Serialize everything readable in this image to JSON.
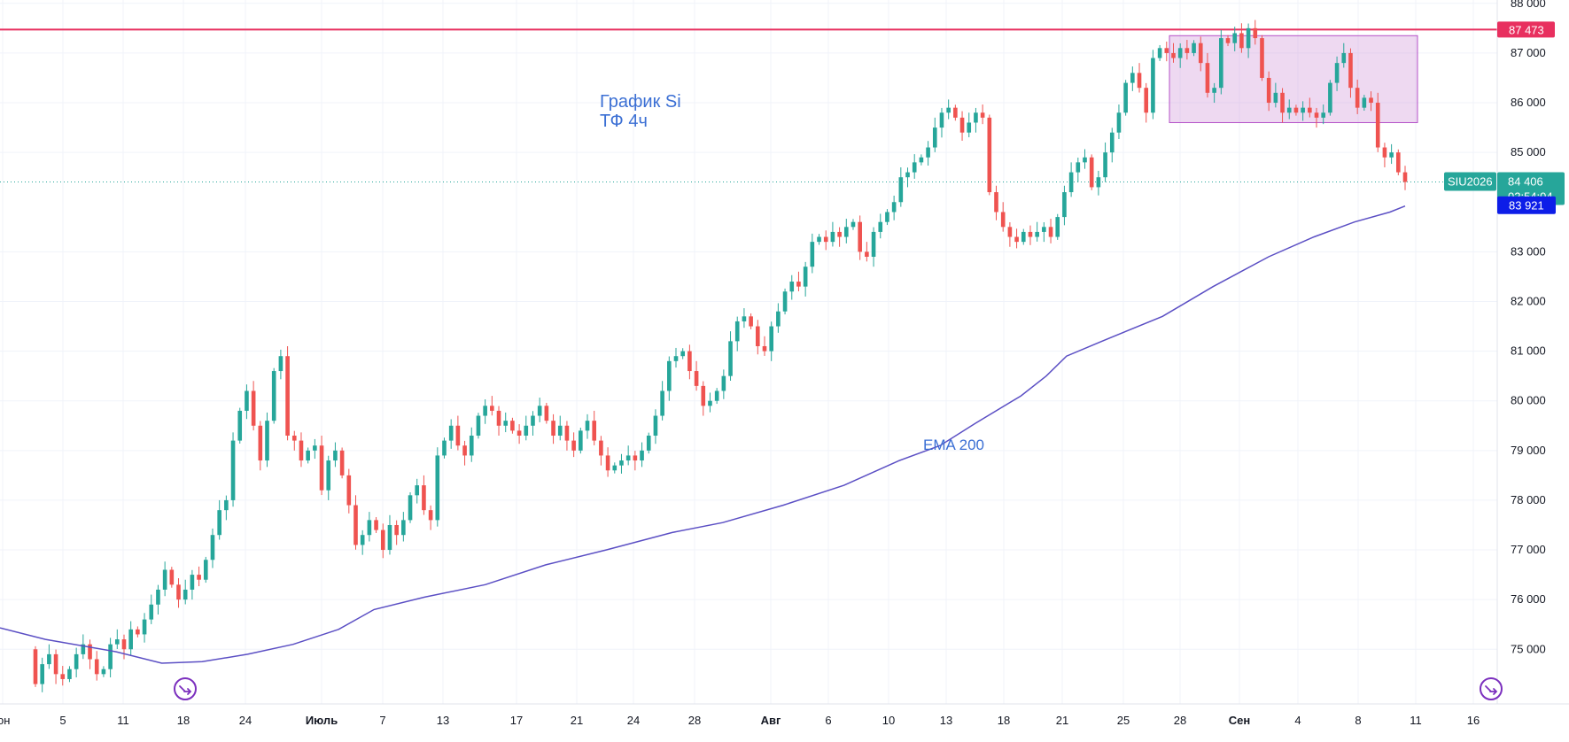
{
  "chart_data": {
    "type": "candlestick",
    "symbol": "SIU2026",
    "timeframe": "4h",
    "y_ticks": [
      75000,
      76000,
      77000,
      78000,
      79000,
      80000,
      81000,
      82000,
      83000,
      85000,
      86000,
      87000,
      88000
    ],
    "y_tick_labels": [
      "75 000",
      "76 000",
      "77 000",
      "78 000",
      "79 000",
      "80 000",
      "81 000",
      "82 000",
      "83 000",
      "85 000",
      "86 000",
      "87 000",
      "88 000"
    ],
    "ylim": [
      73900,
      88050
    ],
    "x_ticks": [
      {
        "label": "юн",
        "bold": false
      },
      {
        "label": "5",
        "bold": false
      },
      {
        "label": "11",
        "bold": false
      },
      {
        "label": "18",
        "bold": false
      },
      {
        "label": "24",
        "bold": false
      },
      {
        "label": "Июль",
        "bold": true
      },
      {
        "label": "7",
        "bold": false
      },
      {
        "label": "13",
        "bold": false
      },
      {
        "label": "17",
        "bold": false
      },
      {
        "label": "21",
        "bold": false
      },
      {
        "label": "24",
        "bold": false
      },
      {
        "label": "28",
        "bold": false
      },
      {
        "label": "Авг",
        "bold": true
      },
      {
        "label": "6",
        "bold": false
      },
      {
        "label": "10",
        "bold": false
      },
      {
        "label": "13",
        "bold": false
      },
      {
        "label": "18",
        "bold": false
      },
      {
        "label": "21",
        "bold": false
      },
      {
        "label": "25",
        "bold": false
      },
      {
        "label": "28",
        "bold": false
      },
      {
        "label": "Сен",
        "bold": true
      },
      {
        "label": "4",
        "bold": false
      },
      {
        "label": "8",
        "bold": false
      },
      {
        "label": "11",
        "bold": false
      },
      {
        "label": "16",
        "bold": false
      }
    ],
    "candles_close": [
      74300,
      74700,
      74900,
      74500,
      74400,
      74600,
      74900,
      75100,
      74800,
      74500,
      74600,
      75100,
      75200,
      75000,
      75400,
      75300,
      75600,
      75900,
      76200,
      76600,
      76300,
      76000,
      76200,
      76500,
      76400,
      76800,
      77300,
      77800,
      78000,
      79200,
      79800,
      80200,
      79500,
      78800,
      79600,
      80600,
      80900,
      79300,
      79200,
      78800,
      79000,
      79100,
      78200,
      78800,
      79000,
      78500,
      77900,
      77100,
      77300,
      77600,
      77400,
      77000,
      77500,
      77300,
      77600,
      78100,
      78300,
      77800,
      77600,
      78900,
      79200,
      79500,
      79100,
      78900,
      79300,
      79700,
      79900,
      79800,
      79500,
      79600,
      79400,
      79300,
      79500,
      79700,
      79900,
      79600,
      79300,
      79500,
      79200,
      79000,
      79400,
      79600,
      79200,
      78900,
      78600,
      78700,
      78800,
      78900,
      78800,
      79000,
      79300,
      79700,
      80200,
      80800,
      80900,
      81000,
      80600,
      80300,
      79900,
      80000,
      80200,
      80500,
      81200,
      81600,
      81700,
      81500,
      81100,
      81000,
      81500,
      81800,
      82200,
      82400,
      82300,
      82700,
      83200,
      83300,
      83200,
      83400,
      83300,
      83500,
      83600,
      83000,
      82900,
      83400,
      83600,
      83800,
      84000,
      84500,
      84600,
      84800,
      84900,
      85100,
      85500,
      85800,
      85900,
      85700,
      85400,
      85600,
      85800,
      85700,
      84200,
      83800,
      83500,
      83300,
      83200,
      83400,
      83300,
      83400,
      83500,
      83300,
      83700,
      84200,
      84600,
      84800,
      84900,
      84300,
      84500,
      85000,
      85400,
      85800,
      86400,
      86600,
      86300,
      85800,
      86900,
      87100,
      87000,
      86900,
      87100,
      87000,
      87200,
      86800,
      86200,
      86300,
      87300,
      87200,
      87400,
      87100,
      87500,
      87300,
      86500,
      86000,
      86200,
      85800,
      85900,
      85800,
      85900,
      85800,
      85700,
      85800,
      86400,
      86800,
      87000,
      86300,
      85900,
      86100,
      86000,
      85100,
      84900,
      85000,
      84600,
      84406
    ],
    "price_levels": [
      {
        "label": "87 473",
        "value": 87473,
        "color": "#e8305f"
      },
      {
        "label": "84 406",
        "value": 84406,
        "color": "#26a69a",
        "time_label": "02:54:04",
        "symbol_label": "SIU2026"
      },
      {
        "label": "83 921",
        "value": 83921,
        "color": "#0d1de8"
      }
    ],
    "range_box": {
      "from_price": 85600,
      "to_price": 87350
    },
    "ema": {
      "period": 200,
      "points": [
        [
          0,
          75430
        ],
        [
          9,
          75200
        ],
        [
          23,
          74950
        ],
        [
          32,
          74720
        ],
        [
          40,
          74750
        ],
        [
          49,
          74900
        ],
        [
          58,
          75100
        ],
        [
          67,
          75400
        ],
        [
          74,
          75800
        ],
        [
          84,
          76050
        ],
        [
          96,
          76300
        ],
        [
          108,
          76700
        ],
        [
          120,
          77000
        ],
        [
          133,
          77350
        ],
        [
          143,
          77550
        ],
        [
          155,
          77900
        ],
        [
          167,
          78300
        ],
        [
          178,
          78800
        ],
        [
          186,
          79100
        ],
        [
          193,
          79550
        ],
        [
          202,
          80100
        ],
        [
          207,
          80500
        ],
        [
          211,
          80900
        ],
        [
          218,
          81200
        ],
        [
          230,
          81700
        ],
        [
          240,
          82300
        ],
        [
          251,
          82900
        ],
        [
          260,
          83300
        ],
        [
          268,
          83600
        ],
        [
          275,
          83800
        ],
        [
          278,
          83921
        ]
      ]
    },
    "annotations": [
      {
        "text": "График Si"
      },
      {
        "text": "ТФ 4ч"
      },
      {
        "text": "EMA 200"
      }
    ],
    "grid": true
  }
}
